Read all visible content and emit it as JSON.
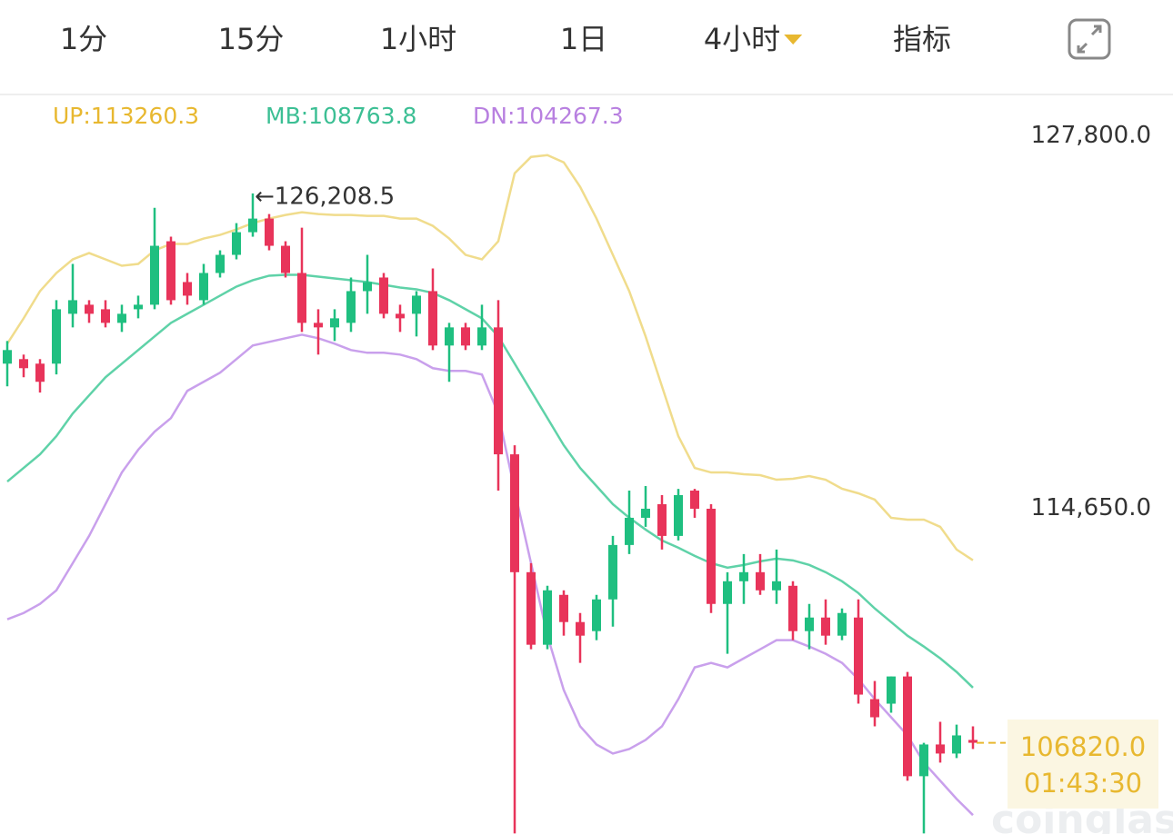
{
  "tabs": [
    "1分",
    "15分",
    "1小时",
    "1日",
    "4小时",
    "指标"
  ],
  "active_tab": 4,
  "watermark": "coinglass.com",
  "chart_data": {
    "type": "candlestick",
    "ylim": [
      103600,
      129700
    ],
    "yticks": [
      {
        "value": 127800,
        "label": "127,800.0"
      },
      {
        "value": 114650,
        "label": "114,650.0"
      }
    ],
    "up_color": "#1fbf80",
    "down_color": "#e8345a",
    "open": [
      120200,
      120360,
      120200,
      120200,
      121960,
      122280,
      122120,
      121640,
      122120,
      122280,
      124520,
      123080,
      122440,
      123400,
      124040,
      124840,
      125320,
      124360,
      123400,
      121640,
      121480,
      121640,
      122760,
      123240,
      121960,
      121960,
      122760,
      120840,
      121480,
      120840,
      121480,
      117000,
      112840,
      110280,
      112040,
      111080,
      110760,
      111880,
      113800,
      114760,
      115240,
      114120,
      115720,
      115080,
      111720,
      112520,
      112840,
      112200,
      112360,
      110760,
      111240,
      110600,
      111240,
      108360,
      108200,
      109160,
      105640,
      106760,
      106440,
      106920
    ],
    "close": [
      120680,
      120040,
      119560,
      122120,
      122440,
      121960,
      121640,
      121960,
      122280,
      124360,
      122440,
      122600,
      123400,
      124040,
      124840,
      125320,
      124360,
      123400,
      121640,
      121480,
      121800,
      122760,
      123080,
      121960,
      121800,
      122600,
      120840,
      121480,
      120840,
      121480,
      117000,
      112840,
      110280,
      112200,
      111080,
      110600,
      111880,
      113800,
      114760,
      115080,
      114120,
      115560,
      115080,
      111720,
      112520,
      112840,
      112200,
      112520,
      110760,
      111240,
      110600,
      111400,
      108520,
      107720,
      109160,
      105640,
      106760,
      106440,
      107080,
      106820
    ],
    "high": [
      121000,
      120520,
      120360,
      122440,
      123720,
      122440,
      122440,
      122280,
      122600,
      125700,
      124680,
      123400,
      123720,
      124200,
      125160,
      126208.5,
      125480,
      124520,
      125000,
      122120,
      122120,
      123240,
      124040,
      123400,
      122280,
      122760,
      123560,
      121640,
      121640,
      122280,
      122440,
      117320,
      113160,
      112360,
      112200,
      111400,
      112040,
      114120,
      115720,
      115880,
      115560,
      115780,
      115780,
      115240,
      112840,
      113480,
      113480,
      113640,
      112520,
      111720,
      111880,
      111560,
      111880,
      109000,
      109160,
      109320,
      106820,
      107560,
      107460,
      107400
    ],
    "low": [
      119400,
      119720,
      119180,
      119820,
      121480,
      121640,
      121480,
      121320,
      121800,
      122120,
      122280,
      122280,
      122280,
      123240,
      123880,
      124680,
      124200,
      123240,
      121320,
      120520,
      121000,
      121320,
      121960,
      121800,
      121320,
      121160,
      120680,
      119560,
      120680,
      120680,
      115720,
      103620,
      110120,
      110120,
      110600,
      109640,
      110440,
      110920,
      113480,
      114440,
      113640,
      113960,
      114760,
      111400,
      109960,
      111720,
      112040,
      111720,
      110440,
      110120,
      110280,
      110440,
      108200,
      107400,
      107880,
      105480,
      103620,
      106120,
      106280,
      106600
    ],
    "series": [
      {
        "name": "UP:113260.3",
        "color": "#f0dc8c",
        "label_color": "#e8b830",
        "values": [
          120904,
          121800,
          122760,
          123400,
          123880,
          124104,
          123880,
          123656,
          123720,
          124200,
          124424,
          124424,
          124616,
          124744,
          124936,
          125160,
          125320,
          125448,
          125544,
          125480,
          125448,
          125448,
          125416,
          125416,
          125320,
          125320,
          125064,
          124616,
          124040,
          123880,
          124520,
          126920,
          127496,
          127560,
          127304,
          126440,
          125320,
          124040,
          122760,
          121160,
          119400,
          117640,
          116520,
          116360,
          116360,
          116296,
          116264,
          116104,
          116136,
          116232,
          116104,
          115784,
          115624,
          115400,
          114760,
          114696,
          114696,
          114440,
          113640,
          113260.3
        ]
      },
      {
        "name": "MB:108763.8",
        "color": "#5fd2a8",
        "label_color": "#3cbf94",
        "values": [
          116040,
          116520,
          117000,
          117640,
          118440,
          119080,
          119720,
          120200,
          120680,
          121160,
          121640,
          121960,
          122280,
          122600,
          122920,
          123144,
          123304,
          123336,
          123336,
          123272,
          123208,
          123144,
          123080,
          122984,
          122888,
          122824,
          122696,
          122440,
          122120,
          121800,
          121160,
          120200,
          119240,
          118280,
          117320,
          116520,
          115880,
          115240,
          114760,
          114344,
          113960,
          113704,
          113416,
          113160,
          113000,
          113096,
          113224,
          113320,
          113256,
          113096,
          112840,
          112520,
          112104,
          111560,
          111080,
          110600,
          110216,
          109800,
          109320,
          108763.8
        ]
      },
      {
        "name": "DN:104267.3",
        "color": "#c9a0ec",
        "label_color": "#b880e0",
        "values": [
          111176,
          111400,
          111720,
          112200,
          113160,
          114120,
          115240,
          116360,
          117160,
          117800,
          118280,
          119240,
          119560,
          119880,
          120360,
          120840,
          120968,
          121096,
          121224,
          121096,
          120904,
          120680,
          120584,
          120584,
          120520,
          120360,
          120040,
          119944,
          119944,
          119816,
          118440,
          115720,
          113160,
          110600,
          108680,
          107400,
          106760,
          106440,
          106600,
          106920,
          107400,
          108360,
          109480,
          109640,
          109480,
          109800,
          110120,
          110440,
          110440,
          110216,
          109960,
          109640,
          109064,
          108360,
          107720,
          107080,
          106120,
          105480,
          104840,
          104267.3
        ]
      }
    ],
    "high_annotation": {
      "value": 126208.5,
      "label": "←126,208.5"
    },
    "last_price": {
      "value": 106820,
      "label": "106820.0",
      "color": "#e8b830"
    },
    "countdown": "01:43:30"
  }
}
